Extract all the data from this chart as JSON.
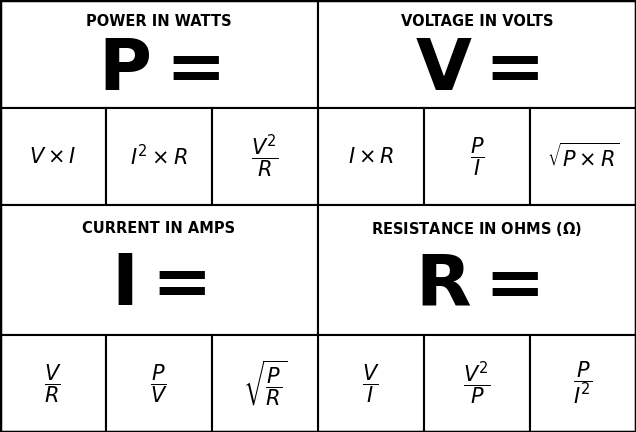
{
  "bg_color": "#ffffff",
  "line_color": "#000000",
  "label_fontsize": 10.5,
  "symbol_fontsize": 52,
  "formula_fontsize": 15,
  "sections": [
    {
      "label": "POWER IN WATTS",
      "symbol": "$\\mathbf{P=}$",
      "x": 1.5,
      "col": 0
    },
    {
      "label": "VOLTAGE IN VOLTS",
      "symbol": "$\\mathbf{V=}$",
      "x": 4.5,
      "col": 1
    },
    {
      "label": "CURRENT IN AMPS",
      "symbol": "$\\mathbf{I=}$",
      "x": 1.5,
      "col": 0
    },
    {
      "label": "RESISTANCE IN OHMS ($\\mathbf{\\Omega}$)",
      "symbol": "$\\mathbf{R=}$",
      "x": 4.5,
      "col": 1
    }
  ],
  "formulas_top_left": [
    "$V \\times I$",
    "$I^2 \\times R$",
    "$\\dfrac{V^2}{R}$"
  ],
  "formulas_top_right": [
    "$I \\times R$",
    "$\\dfrac{P}{I}$",
    "$\\sqrt{P \\times R}$"
  ],
  "formulas_bot_left": [
    "$\\dfrac{V}{R}$",
    "$\\dfrac{P}{V}$",
    "$\\sqrt{\\dfrac{P}{R}}$"
  ],
  "formulas_bot_right": [
    "$\\dfrac{V}{I}$",
    "$\\dfrac{V^2}{P}$",
    "$\\dfrac{P}{I^2}$"
  ]
}
